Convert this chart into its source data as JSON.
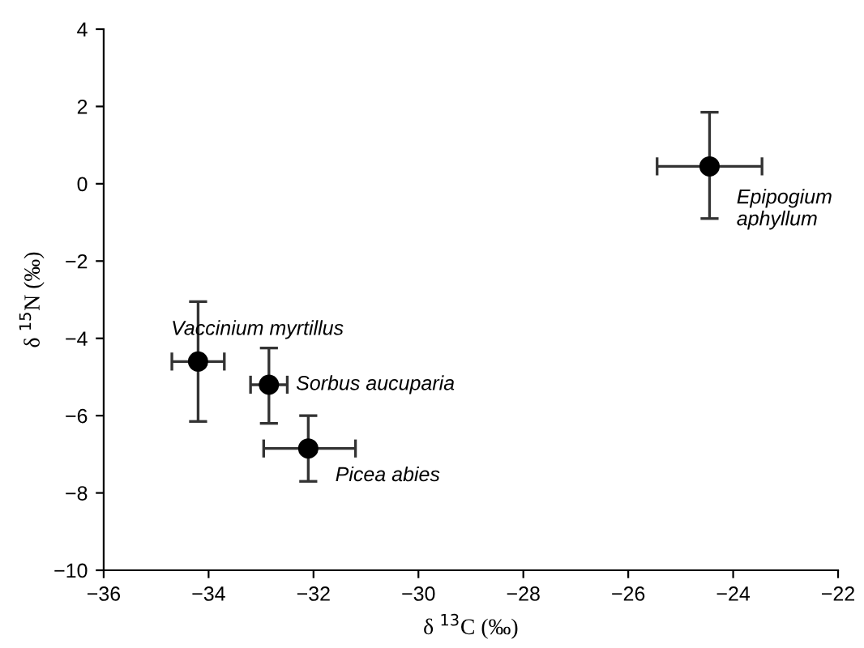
{
  "chart_data": {
    "type": "scatter",
    "xlabel": "δ $^{13}$C (‰)",
    "ylabel": "δ $^{15}$N (‰)",
    "x": [
      -34.2,
      -32.85,
      -32.1,
      -24.45
    ],
    "values": [
      -4.6,
      -5.2,
      -6.85,
      0.45
    ],
    "errors": [
      [
        -6.15,
        -3.05
      ],
      [
        -6.2,
        -4.25
      ],
      [
        -7.7,
        -6.0
      ],
      [
        -0.9,
        1.85
      ]
    ],
    "xerrors": [
      [
        -34.7,
        -33.7
      ],
      [
        -33.2,
        -32.5
      ],
      [
        -32.95,
        -31.2
      ],
      [
        -25.45,
        -23.45
      ]
    ],
    "color": "#000000",
    "marker": "circle",
    "grid": false,
    "xlim": [
      -36,
      -22
    ],
    "xticks": [
      -36,
      -34,
      -32,
      -30,
      -28,
      -26,
      -24,
      -22
    ],
    "ylim": [
      -10,
      4
    ],
    "yticks": [
      -10,
      -8,
      -6,
      -4,
      -2,
      0,
      2,
      4
    ],
    "annotations": [
      {
        "text": "Vaccinium myrtillus",
        "x": -34.2,
        "y": -4.6
      },
      {
        "text": "Sorbus aucuparia",
        "x": -32.85,
        "y": -5.2
      },
      {
        "text": "Picea abies",
        "x": -32.1,
        "y": -6.85
      },
      {
        "text": "Epipogium\naphyllum",
        "x": -24.45,
        "y": 0.45
      }
    ]
  }
}
